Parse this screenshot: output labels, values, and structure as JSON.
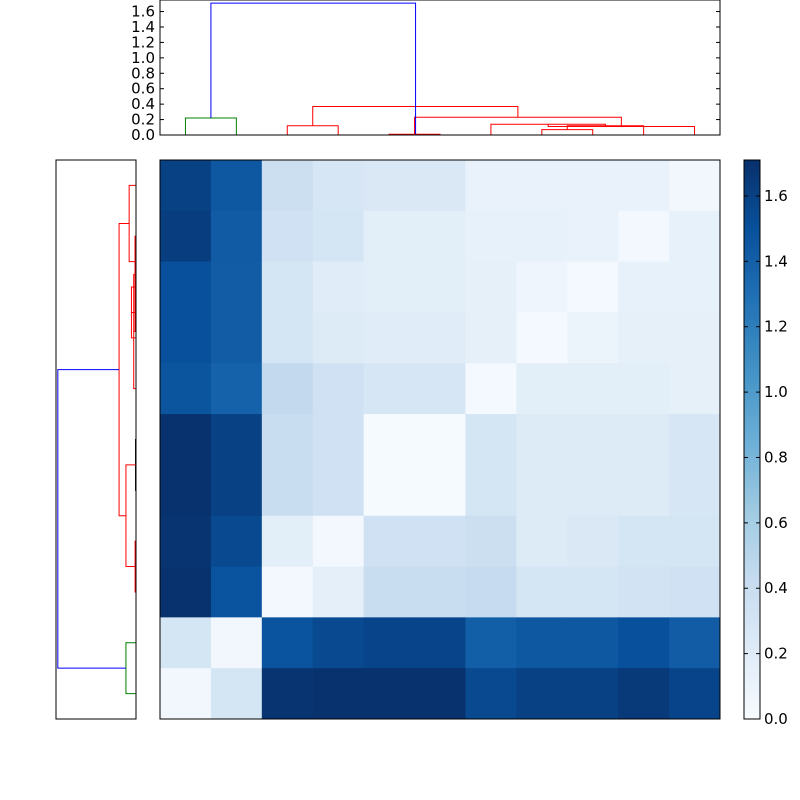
{
  "chart_data": [
    {
      "type": "heatmap",
      "title": "",
      "xlabel": "",
      "ylabel": "",
      "colormap": "Blues",
      "vmin": 0.0,
      "vmax": 1.71,
      "rows": 11,
      "cols": 11,
      "matrix": [
        [
          1.6,
          1.45,
          0.38,
          0.28,
          0.25,
          0.25,
          0.12,
          0.12,
          0.12,
          0.12,
          0.05
        ],
        [
          1.62,
          1.43,
          0.35,
          0.3,
          0.18,
          0.18,
          0.14,
          0.14,
          0.12,
          0.04,
          0.14
        ],
        [
          1.5,
          1.42,
          0.3,
          0.2,
          0.18,
          0.18,
          0.15,
          0.08,
          0.03,
          0.14,
          0.14
        ],
        [
          1.5,
          1.42,
          0.3,
          0.22,
          0.2,
          0.2,
          0.15,
          0.03,
          0.1,
          0.15,
          0.15
        ],
        [
          1.47,
          1.38,
          0.45,
          0.35,
          0.28,
          0.28,
          0.03,
          0.18,
          0.18,
          0.18,
          0.15
        ],
        [
          1.7,
          1.6,
          0.4,
          0.35,
          0.02,
          0.02,
          0.3,
          0.22,
          0.22,
          0.22,
          0.28
        ],
        [
          1.7,
          1.6,
          0.4,
          0.35,
          0.02,
          0.02,
          0.3,
          0.22,
          0.22,
          0.22,
          0.28
        ],
        [
          1.68,
          1.55,
          0.18,
          0.04,
          0.35,
          0.35,
          0.38,
          0.22,
          0.25,
          0.3,
          0.3
        ],
        [
          1.7,
          1.48,
          0.04,
          0.16,
          0.4,
          0.4,
          0.43,
          0.3,
          0.3,
          0.32,
          0.35
        ],
        [
          0.3,
          0.05,
          1.48,
          1.55,
          1.58,
          1.58,
          1.4,
          1.45,
          1.45,
          1.5,
          1.42
        ],
        [
          0.05,
          0.3,
          1.68,
          1.7,
          1.7,
          1.7,
          1.55,
          1.6,
          1.6,
          1.65,
          1.58
        ]
      ],
      "colorbar": {
        "ticks": [
          0.0,
          0.2,
          0.4,
          0.6,
          0.8,
          1.0,
          1.2,
          1.4,
          1.6
        ],
        "tick_labels": [
          "0.0",
          "0.2",
          "0.4",
          "0.6",
          "0.8",
          "1.0",
          "1.2",
          "1.4",
          "1.6"
        ]
      }
    },
    {
      "type": "dendrogram",
      "orientation": "top",
      "title": "",
      "ylim": [
        0.0,
        1.75
      ],
      "yticks": [
        0.0,
        0.2,
        0.4,
        0.6,
        0.8,
        1.0,
        1.2,
        1.4,
        1.6
      ],
      "ytick_labels": [
        "0.0",
        "0.2",
        "0.4",
        "0.6",
        "0.8",
        "1.0",
        "1.2",
        "1.4",
        "1.6"
      ],
      "leaf_count": 11,
      "links": [
        {
          "left": 0.5,
          "right": 1.5,
          "height": 0.22,
          "color": "#008000"
        },
        {
          "left": 2.5,
          "right": 3.5,
          "height": 0.12,
          "color": "#ff0000"
        },
        {
          "left": 4.5,
          "right": 5.5,
          "height": 0.01,
          "color": "#ff0000"
        },
        {
          "left": 7.5,
          "right": 8.5,
          "height": 0.07,
          "color": "#ff0000"
        },
        {
          "left": 8.0,
          "right": 9.5,
          "height": 0.12,
          "color": "#ff0000"
        },
        {
          "left": 6.5,
          "right": 8.75,
          "height": 0.14,
          "color": "#ff0000"
        },
        {
          "left": 7.625,
          "right": 10.5,
          "height": 0.11,
          "color": "#ff0000"
        },
        {
          "left": 5.0,
          "right": 9.0625,
          "height": 0.23,
          "color": "#ff0000"
        },
        {
          "left": 3.0,
          "right": 7.03,
          "height": 0.37,
          "color": "#ff0000"
        },
        {
          "left": 1.0,
          "right": 5.02,
          "height": 1.71,
          "color": "#0000ff"
        }
      ]
    },
    {
      "type": "dendrogram",
      "orientation": "left",
      "title": "",
      "xlim": [
        0.0,
        1.75
      ],
      "leaf_count": 11,
      "links": [
        {
          "left": 0.5,
          "right": 1.5,
          "height": 0.22,
          "color": "#008000"
        },
        {
          "left": 2.5,
          "right": 3.5,
          "height": 0.02,
          "color": "#ff0000"
        },
        {
          "left": 4.5,
          "right": 5.5,
          "height": 0.01,
          "color": "#000000"
        },
        {
          "left": 3.0,
          "right": 5.0,
          "height": 0.22,
          "color": "#ff0000"
        },
        {
          "left": 7.5,
          "right": 8.5,
          "height": 0.1,
          "color": "#ff0000"
        },
        {
          "left": 8.0,
          "right": 9.5,
          "height": 0.02,
          "color": "#ff0000"
        },
        {
          "left": 6.5,
          "right": 8.75,
          "height": 0.05,
          "color": "#ff0000"
        },
        {
          "left": 7.625,
          "right": 9.5,
          "height": 0.02,
          "color": "#ff0000"
        },
        {
          "left": 9.0,
          "right": 10.5,
          "height": 0.15,
          "color": "#ff0000"
        },
        {
          "left": 4.0,
          "right": 9.75,
          "height": 0.37,
          "color": "#ff0000"
        },
        {
          "left": 1.0,
          "right": 6.875,
          "height": 1.71,
          "color": "#0000ff"
        }
      ]
    }
  ]
}
